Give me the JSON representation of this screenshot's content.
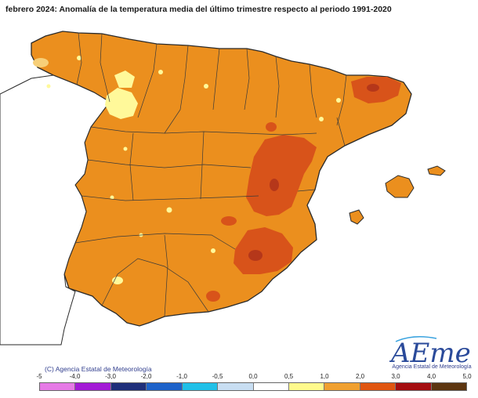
{
  "title": "febrero 2024: Anomalía de la temperatura media del último trimestre respecto al periodo 1991-2020",
  "credit": "(C) Agencia Estatal de Meteorología",
  "logo": {
    "text": "AEmet",
    "subtitle": "Agencia Estatal de Meteorología"
  },
  "legend": {
    "tick_labels": [
      "-5",
      "-4,0",
      "-3,0",
      "-2,0",
      "-1,0",
      "-0,5",
      "0,0",
      "0,5",
      "1,0",
      "2,0",
      "3,0",
      "4,0",
      "5,0"
    ],
    "colors": [
      "#e67ae6",
      "#a31ad6",
      "#1f2f7a",
      "#1d62c9",
      "#20c0e8",
      "#c8def2",
      "#ffffff",
      "#fffa8c",
      "#f0a030",
      "#e05510",
      "#a40d10",
      "#5c3510"
    ]
  },
  "map": {
    "background_anomaly_class": "1,0 a 2,0",
    "colors": {
      "dominant": "#eb8f1e",
      "hot": "#d8531a",
      "hottest": "#b5371a",
      "cool": "#fff99a",
      "mild": "#f7cf78"
    }
  }
}
